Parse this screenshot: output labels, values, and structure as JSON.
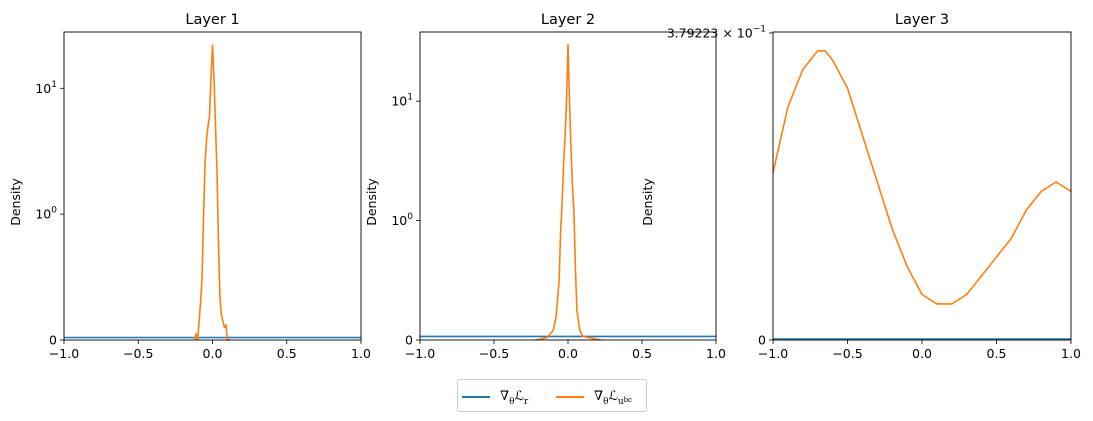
{
  "colors": {
    "series1": "#1f77b4",
    "series2": "#ff7f0e",
    "axis": "#000000"
  },
  "legend": {
    "items": [
      {
        "prefix": "∇",
        "sub": "θ",
        "main": "ℒ",
        "tail": "r",
        "tail2": ""
      },
      {
        "prefix": "∇",
        "sub": "θ",
        "main": "ℒ",
        "tail": "u",
        "tail2": "bc"
      }
    ]
  },
  "chart_data": [
    {
      "type": "line",
      "title": "Layer 1",
      "ylabel": "Density",
      "xlim": [
        -1.0,
        1.0
      ],
      "yscale": "symlog",
      "y_ticks": [
        "0",
        "10^0",
        "10^1"
      ],
      "x_ticks": [
        "−1.0",
        "−0.5",
        "0.0",
        "0.5",
        "1.0"
      ],
      "y_tick_values": [
        0,
        1,
        10
      ],
      "y_max": 28,
      "series": [
        {
          "x": [
            -1.0,
            1.0
          ],
          "y": [
            0.02,
            0.02
          ]
        },
        {
          "x": [
            -0.12,
            -0.11,
            -0.1,
            -0.09,
            -0.08,
            -0.07,
            -0.06,
            -0.05,
            -0.04,
            -0.03,
            -0.02,
            -0.01,
            0.0,
            0.01,
            0.02,
            0.03,
            0.04,
            0.05,
            0.06,
            0.07,
            0.08,
            0.09,
            0.1,
            0.11,
            0.12
          ],
          "y": [
            0.0,
            0.05,
            0.0,
            0.15,
            0.3,
            0.5,
            1.0,
            2.6,
            4.0,
            5.0,
            6.0,
            12.0,
            22.0,
            12.0,
            5.0,
            2.2,
            0.8,
            0.35,
            0.2,
            0.15,
            0.1,
            0.12,
            0.0,
            0.0,
            0.0
          ]
        }
      ]
    },
    {
      "type": "line",
      "title": "Layer 2",
      "ylabel": "Density",
      "xlim": [
        -1.0,
        1.0
      ],
      "yscale": "symlog",
      "y_ticks": [
        "0",
        "10^0",
        "10^1"
      ],
      "x_ticks": [
        "−1.0",
        "−0.5",
        "0.0",
        "0.5",
        "1.0"
      ],
      "y_tick_values": [
        0,
        1,
        10
      ],
      "y_max": 38,
      "series": [
        {
          "x": [
            -1.0,
            1.0
          ],
          "y": [
            0.03,
            0.03
          ]
        },
        {
          "x": [
            -0.22,
            -0.18,
            -0.14,
            -0.1,
            -0.08,
            -0.06,
            -0.05,
            -0.04,
            -0.03,
            -0.02,
            -0.01,
            0.0,
            0.01,
            0.02,
            0.03,
            0.04,
            0.05,
            0.06,
            0.08,
            0.1,
            0.14,
            0.18,
            0.22
          ],
          "y": [
            0.0,
            0.01,
            0.02,
            0.08,
            0.2,
            0.5,
            0.9,
            1.4,
            3.0,
            5.0,
            10.0,
            30.0,
            10.0,
            4.0,
            2.0,
            1.2,
            0.6,
            0.25,
            0.08,
            0.03,
            0.02,
            0.01,
            0.0
          ]
        }
      ]
    },
    {
      "type": "line",
      "title": "Layer 3",
      "ylabel": "Density",
      "xlim": [
        -1.0,
        1.0
      ],
      "yscale": "symlog",
      "y_ticks": [
        "0",
        "3.79223 × 10^−1"
      ],
      "x_ticks": [
        "−1.0",
        "−0.5",
        "0.0",
        "0.5",
        "1.0"
      ],
      "y_tick_values": [
        0,
        0.379223
      ],
      "y_range_norm": [
        0,
        1
      ],
      "series": [
        {
          "x": [
            -1.0,
            1.0
          ],
          "y": [
            0.0,
            0.0
          ]
        },
        {
          "x": [
            -1.0,
            -0.9,
            -0.8,
            -0.7,
            -0.65,
            -0.6,
            -0.5,
            -0.4,
            -0.3,
            -0.2,
            -0.1,
            0.0,
            0.1,
            0.2,
            0.3,
            0.4,
            0.5,
            0.6,
            0.7,
            0.8,
            0.9,
            1.0
          ],
          "y": [
            0.3792255,
            0.3792262,
            0.3792266,
            0.3792268,
            0.3792268,
            0.3792267,
            0.3792264,
            0.3792259,
            0.3792254,
            0.3792249,
            0.3792245,
            0.3792242,
            0.3792241,
            0.3792241,
            0.3792242,
            0.3792244,
            0.3792246,
            0.3792248,
            0.3792251,
            0.3792253,
            0.3792254,
            0.3792253
          ]
        }
      ]
    }
  ]
}
